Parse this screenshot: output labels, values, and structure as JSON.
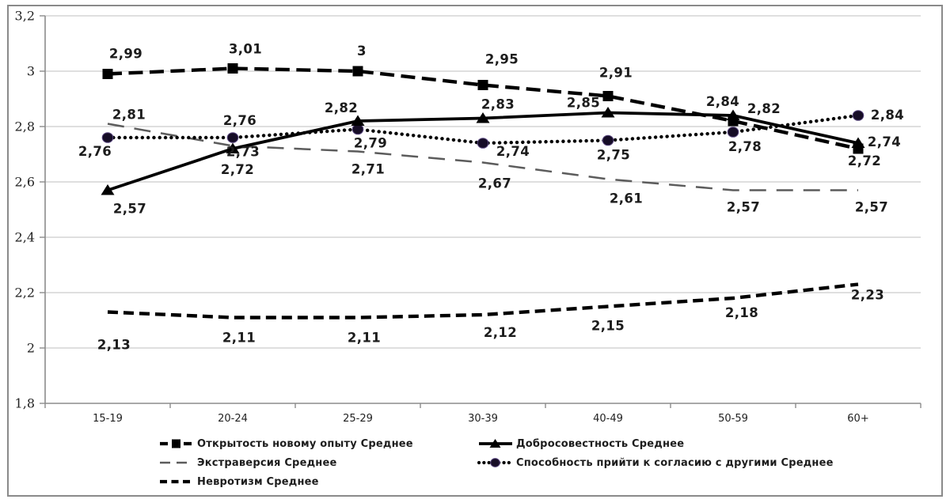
{
  "chart_data": {
    "type": "line",
    "title": "",
    "categories": [
      "15-19",
      "20-24",
      "25-29",
      "30-39",
      "40-49",
      "50-59",
      "60+"
    ],
    "y_axis": {
      "min": 1.8,
      "max": 3.2,
      "step": 0.2,
      "tick_labels": [
        "1,8",
        "2",
        "2,2",
        "2,4",
        "2,6",
        "2,8",
        "3",
        "3,2"
      ]
    },
    "grid": true,
    "legend_position": "bottom",
    "colors": {
      "frame": "#8a8a8a",
      "grid": "#bfbfbf",
      "axis": "#8c8c8c",
      "label_text": "#1c1c1c",
      "axis_text": "#222222",
      "black_line": "#000000",
      "extraversion_line": "#5c5c5c",
      "circle_marker_fill": "#160d26",
      "circle_marker_stroke": "#5a4880"
    },
    "series": [
      {
        "id": "openness",
        "name": "Открытость новому опыту Среднее",
        "line_style": "bold-dashed",
        "marker": "square",
        "color": "#000000",
        "values": [
          2.99,
          3.01,
          3.0,
          2.95,
          2.91,
          2.82,
          2.72
        ],
        "point_labels": [
          "2,99",
          "3,01",
          "3",
          "2,95",
          "2,91",
          "2,82",
          "2,72"
        ],
        "label_dx": [
          23,
          16,
          5,
          24,
          10,
          39,
          8
        ],
        "label_dy": [
          -20,
          -19,
          -20,
          -27,
          -24,
          -10,
          21
        ]
      },
      {
        "id": "conscientiousness",
        "name": "Добросовестность Среднее",
        "line_style": "solid",
        "marker": "triangle",
        "color": "#000000",
        "values": [
          2.57,
          2.72,
          2.82,
          2.83,
          2.85,
          2.84,
          2.74
        ],
        "point_labels": [
          "2,57",
          "2,72",
          "2,82",
          "2,83",
          "2,85",
          "2,84",
          "2,74"
        ],
        "label_dx": [
          28,
          6,
          -21,
          19,
          -31,
          -13,
          33
        ],
        "label_dy": [
          29,
          32,
          -11,
          -12,
          -7,
          -12,
          4
        ]
      },
      {
        "id": "extraversion",
        "name": "Экстраверсия Среднее",
        "line_style": "long-dash",
        "marker": "none",
        "color": "#5c5c5c",
        "values": [
          2.81,
          2.73,
          2.71,
          2.67,
          2.61,
          2.57,
          2.57
        ],
        "point_labels": [
          "2,81",
          "2,73",
          "2,71",
          "2,67",
          "2,61",
          "2,57",
          "2,57"
        ],
        "label_dx": [
          27,
          13,
          13,
          15,
          23,
          13,
          17
        ],
        "label_dy": [
          -6,
          13,
          28,
          32,
          30,
          27,
          27
        ]
      },
      {
        "id": "agreeableness",
        "name": "Способность прийти к согласию с другими Среднее",
        "line_style": "dotted",
        "marker": "circle",
        "color": "#000000",
        "values": [
          2.76,
          2.76,
          2.79,
          2.74,
          2.75,
          2.78,
          2.84
        ],
        "point_labels": [
          "2,76",
          "2,76",
          "2,79",
          "2,74",
          "2,75",
          "2,78",
          "2,84"
        ],
        "label_dx": [
          -16,
          9,
          16,
          38,
          7,
          15,
          37
        ],
        "label_dy": [
          23,
          -16,
          23,
          16,
          24,
          24,
          5
        ]
      },
      {
        "id": "neuroticism",
        "name": "Невротизм Среднее",
        "line_style": "dashed",
        "marker": "none",
        "color": "#000000",
        "values": [
          2.13,
          2.11,
          2.11,
          2.12,
          2.15,
          2.18,
          2.23
        ],
        "point_labels": [
          "2,13",
          "2,11",
          "2,11",
          "2,12",
          "2,15",
          "2,18",
          "2,23"
        ],
        "label_dx": [
          8,
          8,
          8,
          22,
          0,
          11,
          12
        ],
        "label_dy": [
          47,
          31,
          31,
          28,
          30,
          24,
          19
        ]
      }
    ]
  },
  "legend": {
    "columns": [
      [
        "openness",
        "extraversion",
        "neuroticism"
      ],
      [
        "conscientiousness",
        "agreeableness"
      ]
    ]
  }
}
